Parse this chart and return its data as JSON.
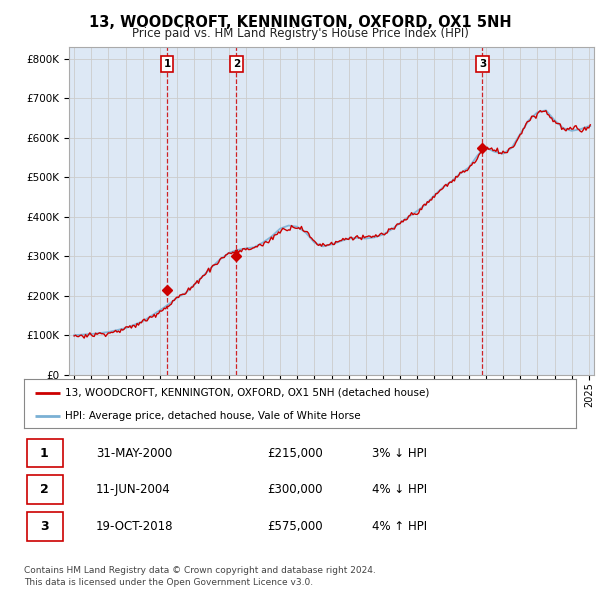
{
  "title": "13, WOODCROFT, KENNINGTON, OXFORD, OX1 5NH",
  "subtitle": "Price paid vs. HM Land Registry's House Price Index (HPI)",
  "ylabel_ticks": [
    "£0",
    "£100K",
    "£200K",
    "£300K",
    "£400K",
    "£500K",
    "£600K",
    "£700K",
    "£800K"
  ],
  "ytick_values": [
    0,
    100000,
    200000,
    300000,
    400000,
    500000,
    600000,
    700000,
    800000
  ],
  "ylim": [
    0,
    830000
  ],
  "xlim_start": 1994.7,
  "xlim_end": 2025.3,
  "red_color": "#cc0000",
  "blue_color": "#7ab0d4",
  "sale_markers": [
    {
      "year": 2000.42,
      "price": 215000,
      "label": "1"
    },
    {
      "year": 2004.45,
      "price": 300000,
      "label": "2"
    },
    {
      "year": 2018.8,
      "price": 575000,
      "label": "3"
    }
  ],
  "legend_entries": [
    "13, WOODCROFT, KENNINGTON, OXFORD, OX1 5NH (detached house)",
    "HPI: Average price, detached house, Vale of White Horse"
  ],
  "table_rows": [
    {
      "num": "1",
      "date": "31-MAY-2000",
      "price": "£215,000",
      "pct": "3% ↓ HPI"
    },
    {
      "num": "2",
      "date": "11-JUN-2004",
      "price": "£300,000",
      "pct": "4% ↓ HPI"
    },
    {
      "num": "3",
      "date": "19-OCT-2018",
      "price": "£575,000",
      "pct": "4% ↑ HPI"
    }
  ],
  "footer": "Contains HM Land Registry data © Crown copyright and database right 2024.\nThis data is licensed under the Open Government Licence v3.0.",
  "background_color": "#ffffff",
  "grid_color": "#cccccc",
  "plot_bg_color": "#dde8f5"
}
